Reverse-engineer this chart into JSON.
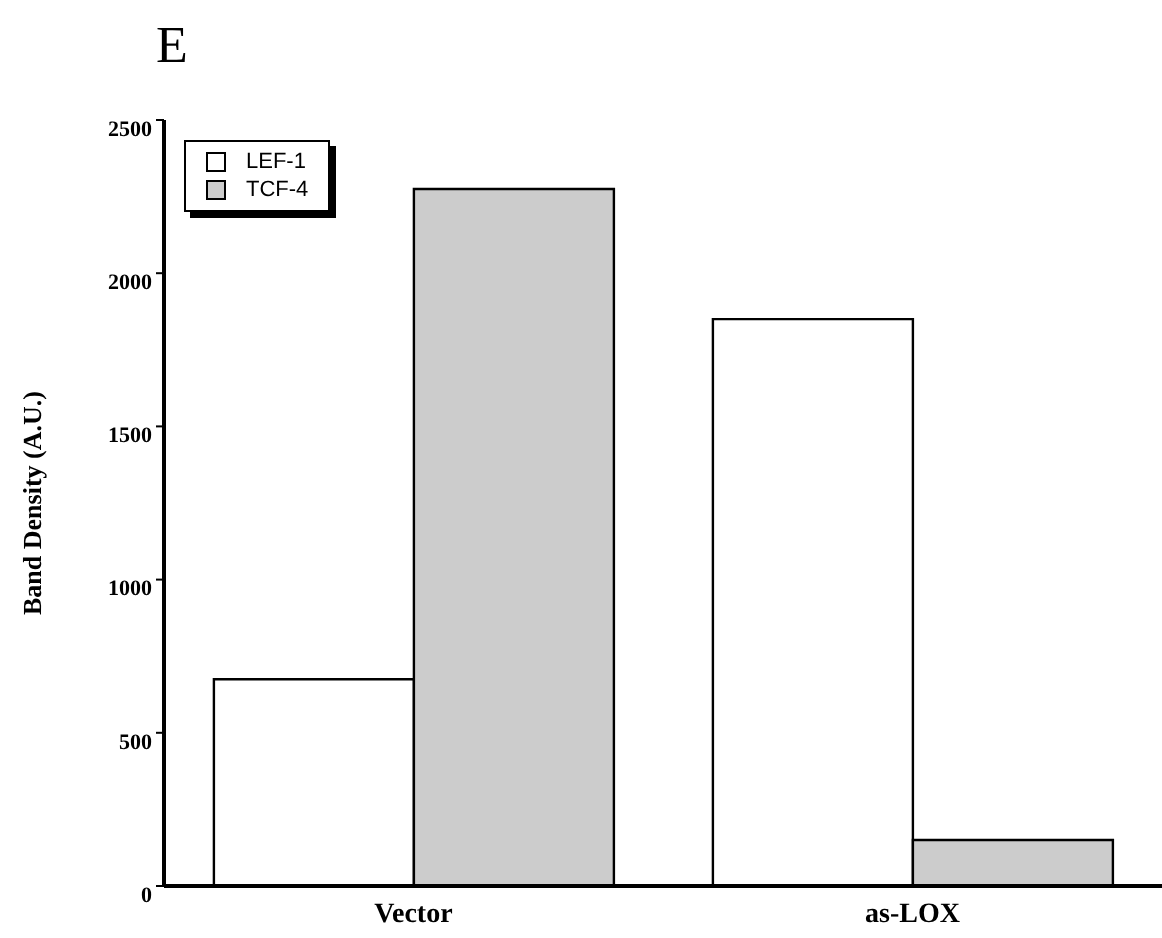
{
  "chart_data": {
    "type": "bar",
    "title": "E",
    "ylabel": "Band Density (A.U.)",
    "categories": [
      "Vector",
      "as-LOX"
    ],
    "series": [
      {
        "name": "LEF-1",
        "color": "#ffffff",
        "values": [
          675,
          1850
        ]
      },
      {
        "name": "TCF-4",
        "color": "#cccccc",
        "values": [
          2275,
          150
        ]
      }
    ],
    "ylim": [
      0,
      2500
    ],
    "yticks": [
      0,
      500,
      1000,
      1500,
      2000,
      2500
    ],
    "legend": "top left"
  }
}
